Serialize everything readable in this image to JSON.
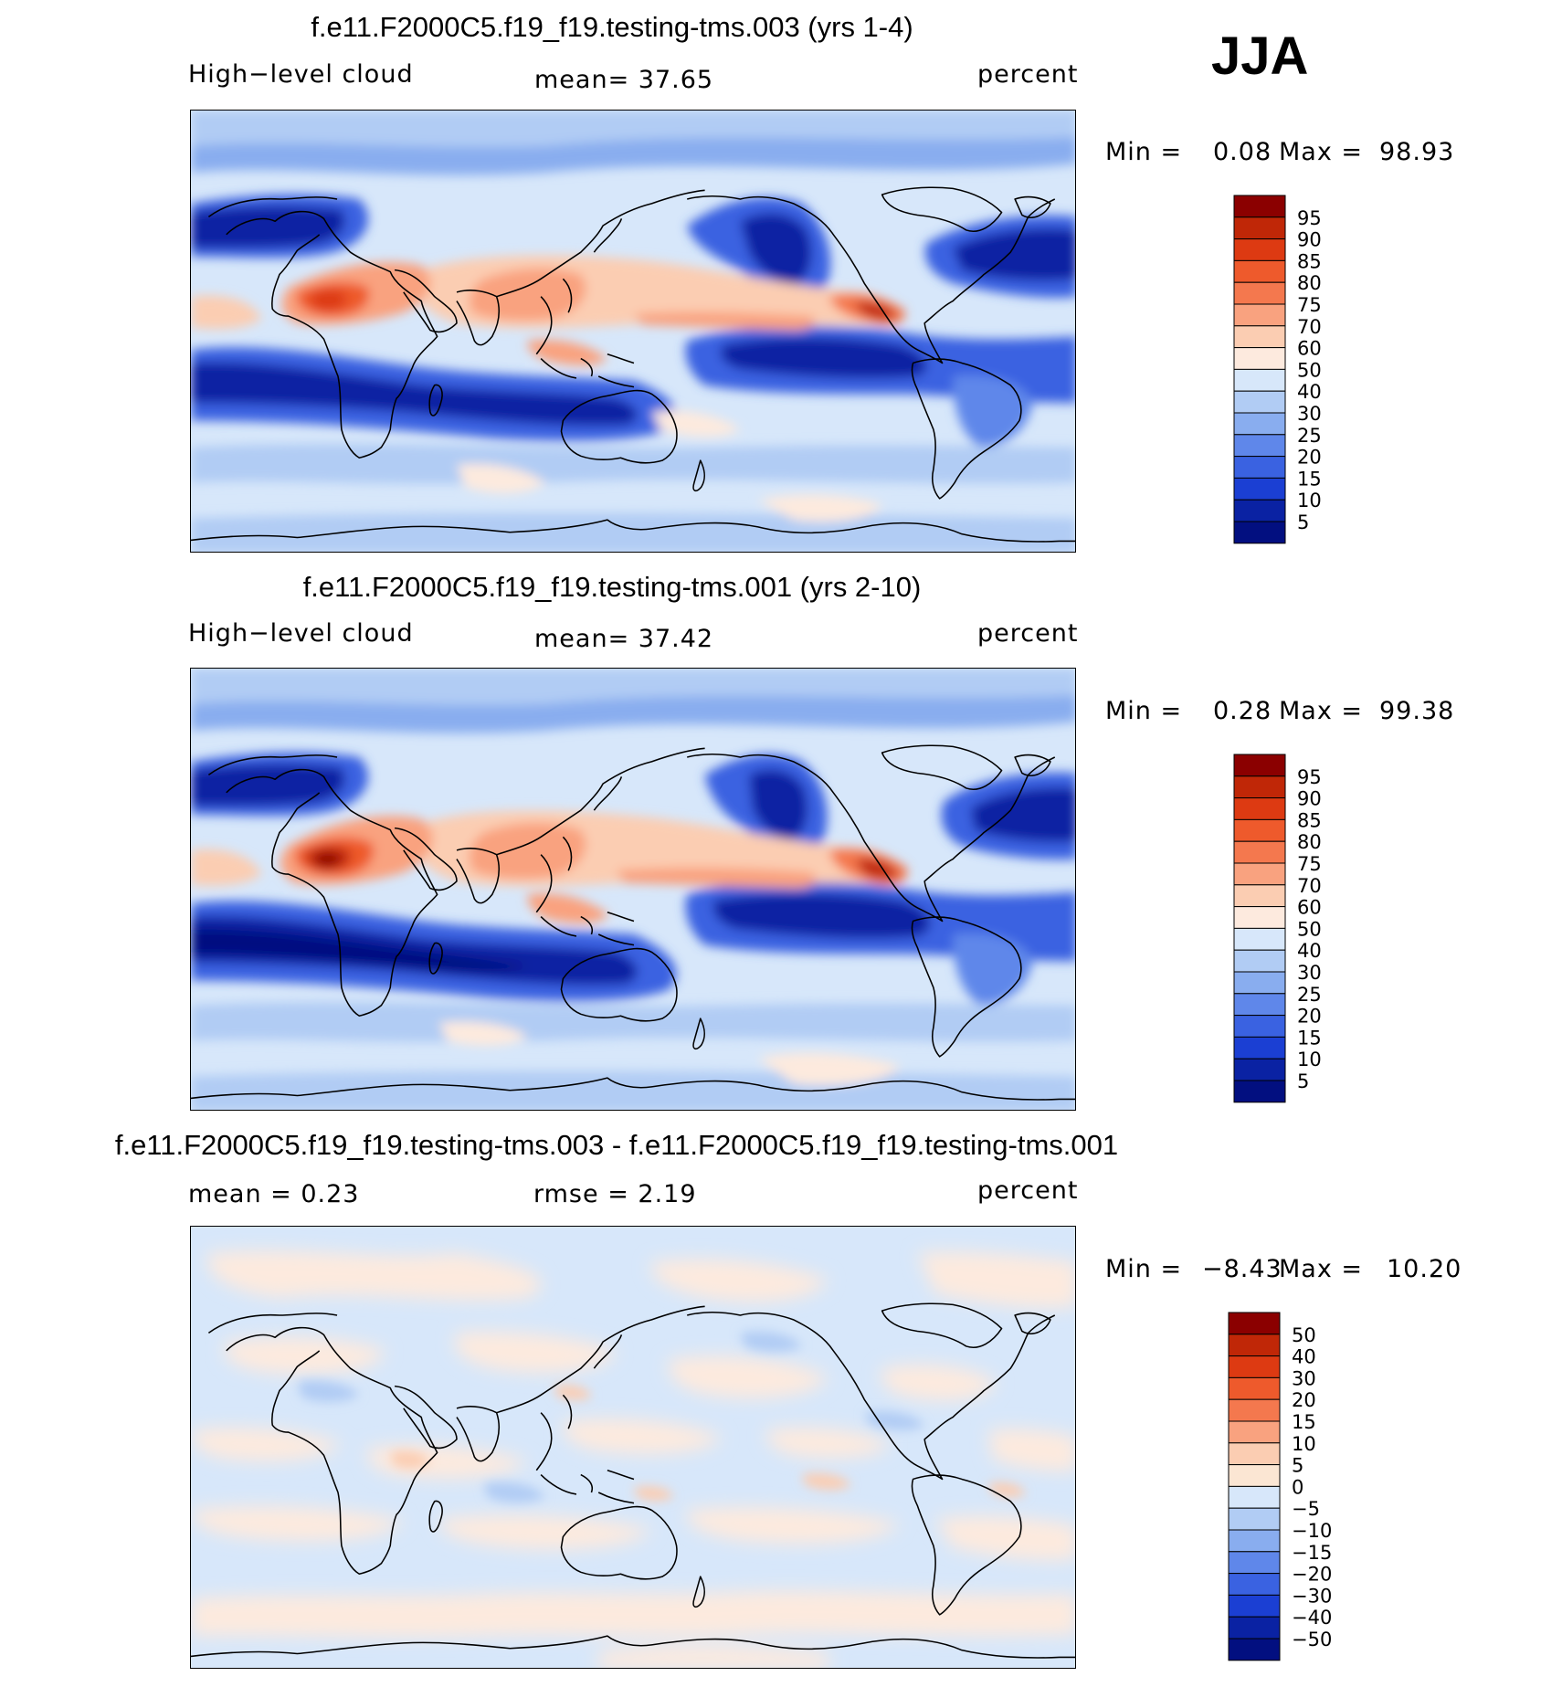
{
  "season": "JJA",
  "colors": {
    "pos": [
      "#fbe6d3",
      "#fbcdb2",
      "#f9a27f",
      "#f4784e",
      "#ee5a2c",
      "#dd3a12",
      "#c02707",
      "#8b0000"
    ],
    "neg": [
      "#d7e7fa",
      "#b1ccf4",
      "#89adef",
      "#5f87ea",
      "#3a62e1",
      "#1b3fd3",
      "#0a22a3",
      "#020f80"
    ],
    "clim": [
      "#020f80",
      "#0a22a3",
      "#1b3fd3",
      "#3a62e1",
      "#5f87ea",
      "#89adef",
      "#b1ccf4",
      "#d7e7fa",
      "#fdeade",
      "#fbcdb2",
      "#f9a27f",
      "#f4784e",
      "#ee5a2c",
      "#dd3a12",
      "#c02707",
      "#8b0000"
    ]
  },
  "panels": [
    {
      "title": "f.e11.F2000C5.f19_f19.testing-tms.003 (yrs 1-4)",
      "left_label": "High−level cloud",
      "center_label": "mean=   37.65",
      "right_label": "percent",
      "min_label": "Min =",
      "min_value": "0.08",
      "max_label": "Max =",
      "max_value": "98.93",
      "colorbar_labels": [
        "95",
        "90",
        "85",
        "80",
        "75",
        "70",
        "60",
        "50",
        "40",
        "30",
        "25",
        "20",
        "15",
        "10",
        "5"
      ]
    },
    {
      "title": "f.e11.F2000C5.f19_f19.testing-tms.001 (yrs 2-10)",
      "left_label": "High−level cloud",
      "center_label": "mean=   37.42",
      "right_label": "percent",
      "min_label": "Min =",
      "min_value": "0.28",
      "max_label": "Max =",
      "max_value": "99.38",
      "colorbar_labels": [
        "95",
        "90",
        "85",
        "80",
        "75",
        "70",
        "60",
        "50",
        "40",
        "30",
        "25",
        "20",
        "15",
        "10",
        "5"
      ]
    },
    {
      "title": "f.e11.F2000C5.f19_f19.testing-tms.003 - f.e11.F2000C5.f19_f19.testing-tms.001",
      "left_label": "mean =    0.23",
      "center_label": "rmse =    2.19",
      "right_label": "percent",
      "min_label": "Min =",
      "min_value": "−8.43",
      "max_label": "Max =",
      "max_value": "10.20",
      "colorbar_labels": [
        "50",
        "40",
        "30",
        "20",
        "15",
        "10",
        "5",
        "0",
        "−5",
        "−10",
        "−15",
        "−20",
        "−30",
        "−40",
        "−50"
      ]
    }
  ]
}
